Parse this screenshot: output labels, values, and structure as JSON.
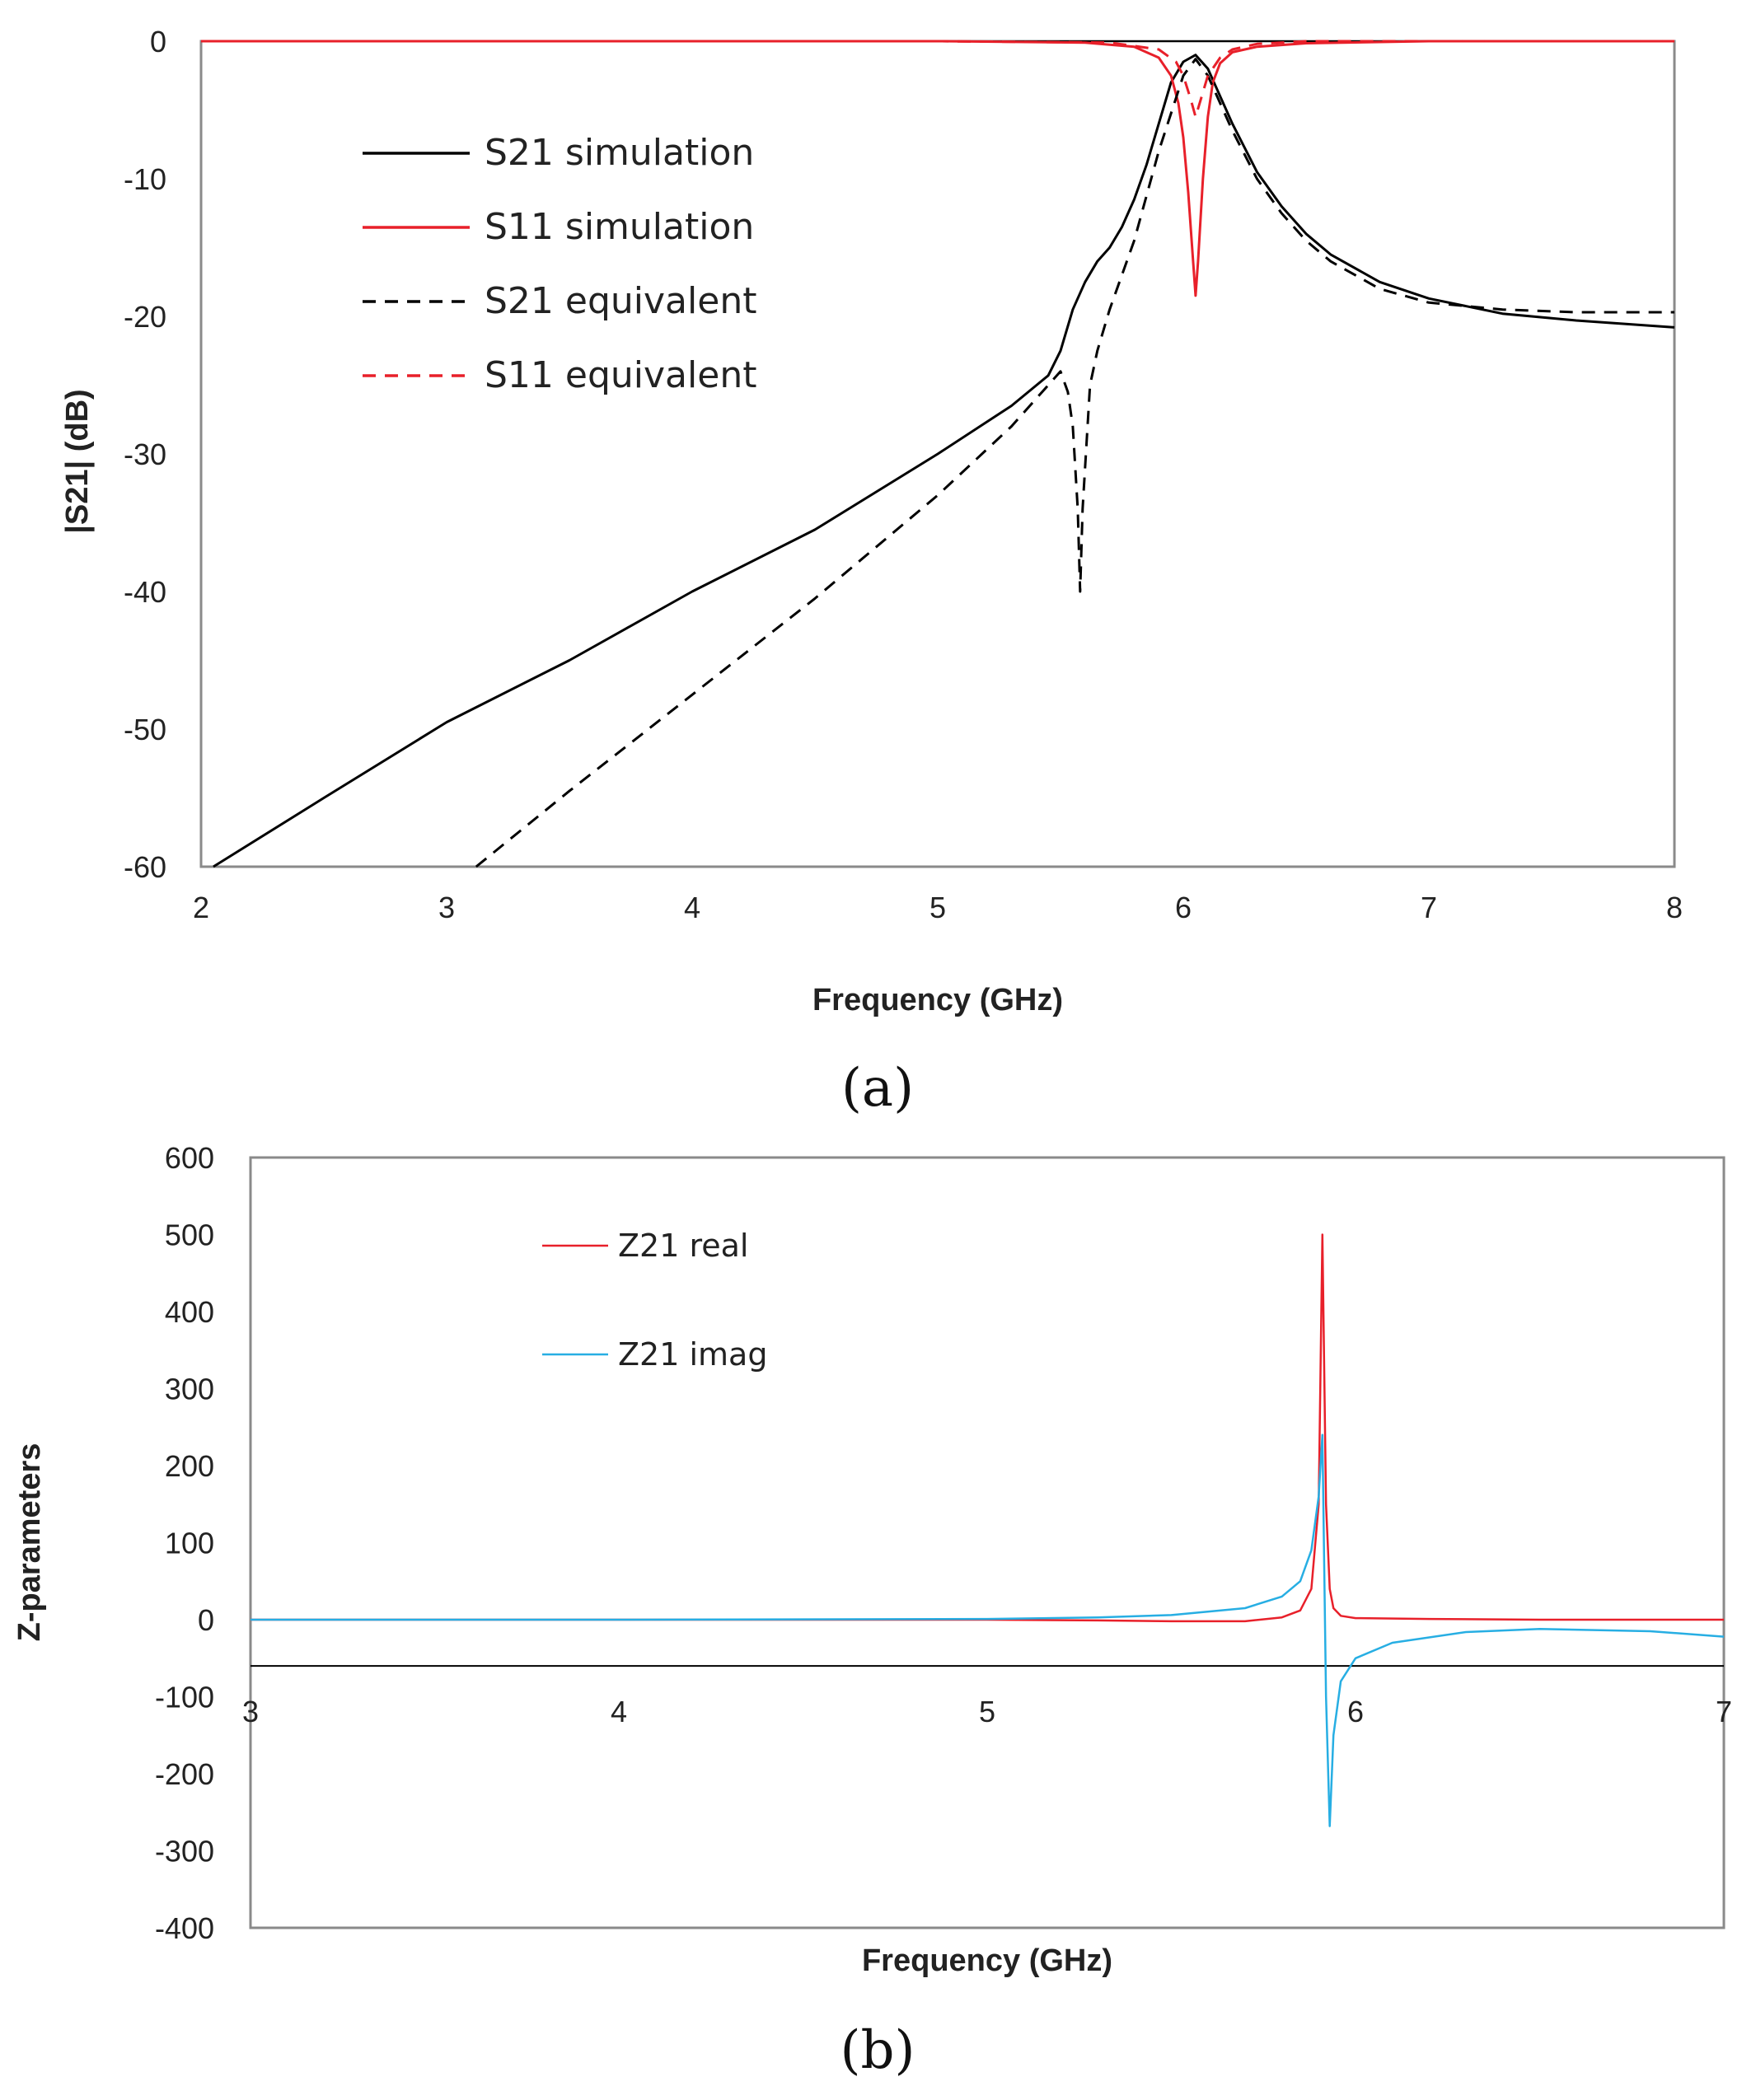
{
  "chart_data": [
    {
      "id": "a",
      "type": "line",
      "caption": "(a)",
      "xlabel": "Frequency (GHz)",
      "ylabel": "|S21| (dB)",
      "xlim": [
        2,
        8
      ],
      "ylim": [
        -60,
        0
      ],
      "xticks": [
        2,
        3,
        4,
        5,
        6,
        7,
        8
      ],
      "yticks": [
        0,
        -10,
        -20,
        -30,
        -40,
        -50,
        -60
      ],
      "grid": false,
      "legend_position": "upper-left",
      "series": [
        {
          "name": "S21 simulation",
          "color": "#000000",
          "style": "solid",
          "x": [
            2.05,
            2.5,
            3.0,
            3.5,
            4.0,
            4.5,
            5.0,
            5.3,
            5.45,
            5.5,
            5.55,
            5.6,
            5.65,
            5.7,
            5.75,
            5.8,
            5.85,
            5.9,
            5.95,
            6.0,
            6.05,
            6.1,
            6.15,
            6.2,
            6.3,
            6.4,
            6.5,
            6.6,
            6.8,
            7.0,
            7.3,
            7.6,
            8.0
          ],
          "y": [
            -60,
            -55,
            -49.5,
            -45,
            -40,
            -35.5,
            -30,
            -26.5,
            -24.3,
            -22.5,
            -19.5,
            -17.5,
            -16,
            -15,
            -13.5,
            -11.5,
            -9,
            -6,
            -3,
            -1.5,
            -1,
            -2,
            -4,
            -6,
            -9.5,
            -12,
            -14,
            -15.5,
            -17.5,
            -18.7,
            -19.8,
            -20.3,
            -20.8
          ]
        },
        {
          "name": "S11 simulation",
          "color": "#e8202a",
          "style": "solid",
          "x": [
            2.0,
            3.0,
            4.0,
            5.0,
            5.6,
            5.8,
            5.9,
            5.95,
            5.98,
            6.0,
            6.02,
            6.04,
            6.05,
            6.06,
            6.08,
            6.1,
            6.12,
            6.15,
            6.2,
            6.3,
            6.5,
            7.0,
            8.0
          ],
          "y": [
            0,
            0,
            0,
            0,
            -0.1,
            -0.4,
            -1.2,
            -2.5,
            -4.5,
            -7,
            -11,
            -16,
            -18.5,
            -16,
            -10,
            -5.5,
            -3,
            -1.6,
            -0.8,
            -0.4,
            -0.15,
            0,
            0
          ]
        },
        {
          "name": "S21 equivalent",
          "color": "#000000",
          "style": "dashed",
          "x": [
            3.12,
            3.5,
            4.0,
            4.5,
            5.0,
            5.3,
            5.45,
            5.5,
            5.53,
            5.55,
            5.57,
            5.58,
            5.59,
            5.62,
            5.65,
            5.7,
            5.8,
            5.9,
            6.0,
            6.05,
            6.1,
            6.2,
            6.3,
            6.4,
            6.5,
            6.6,
            6.8,
            7.0,
            7.3,
            7.6,
            8.0
          ],
          "y": [
            -60,
            -54.5,
            -47.5,
            -40.5,
            -33,
            -28,
            -25,
            -24,
            -25.5,
            -28,
            -34,
            -40,
            -34,
            -25,
            -22.5,
            -19.5,
            -14.5,
            -8,
            -2.5,
            -1.3,
            -2.5,
            -6.5,
            -10,
            -12.5,
            -14.5,
            -16,
            -18,
            -19,
            -19.5,
            -19.7,
            -19.7
          ]
        },
        {
          "name": "S11 equivalent",
          "color": "#e8202a",
          "style": "dashed",
          "x": [
            2.0,
            3.0,
            4.0,
            5.0,
            5.7,
            5.9,
            5.97,
            6.0,
            6.03,
            6.05,
            6.07,
            6.1,
            6.15,
            6.2,
            6.3,
            6.5,
            7.0,
            8.0
          ],
          "y": [
            0,
            0,
            0,
            0,
            -0.1,
            -0.6,
            -1.5,
            -2.5,
            -4.2,
            -5.5,
            -4.3,
            -2.5,
            -1.2,
            -0.6,
            -0.2,
            0,
            0,
            0
          ]
        }
      ]
    },
    {
      "id": "b",
      "type": "line",
      "caption": "(b)",
      "xlabel": "Frequency (GHz)",
      "ylabel": "Z-parameters",
      "xlim": [
        3,
        7
      ],
      "ylim": [
        -400,
        600
      ],
      "xticks": [
        3,
        4,
        5,
        6,
        7
      ],
      "yticks": [
        600,
        500,
        400,
        300,
        200,
        100,
        0,
        -100,
        -200,
        -300,
        -400
      ],
      "x_axis_crossing": -60,
      "grid": false,
      "legend_position": "upper-left",
      "series": [
        {
          "name": "Z21 real",
          "color": "#e8202a",
          "style": "solid",
          "x": [
            3.0,
            4.0,
            5.0,
            5.3,
            5.5,
            5.7,
            5.8,
            5.85,
            5.88,
            5.9,
            5.91,
            5.92,
            5.93,
            5.94,
            5.96,
            6.0,
            6.2,
            6.5,
            7.0
          ],
          "y": [
            0,
            0,
            0,
            -1,
            -2,
            -2,
            3,
            12,
            40,
            150,
            500,
            150,
            40,
            15,
            5,
            2,
            1,
            0,
            0
          ]
        },
        {
          "name": "Z21 imag",
          "color": "#27aee3",
          "style": "solid",
          "x": [
            3.0,
            4.0,
            5.0,
            5.3,
            5.5,
            5.7,
            5.8,
            5.85,
            5.88,
            5.9,
            5.91,
            5.92,
            5.93,
            5.94,
            5.96,
            6.0,
            6.1,
            6.3,
            6.5,
            6.8,
            7.0
          ],
          "y": [
            0,
            0,
            1,
            3,
            6,
            15,
            30,
            50,
            90,
            160,
            240,
            -100,
            -268,
            -150,
            -80,
            -50,
            -30,
            -16,
            -12,
            -15,
            -22
          ]
        }
      ]
    }
  ]
}
